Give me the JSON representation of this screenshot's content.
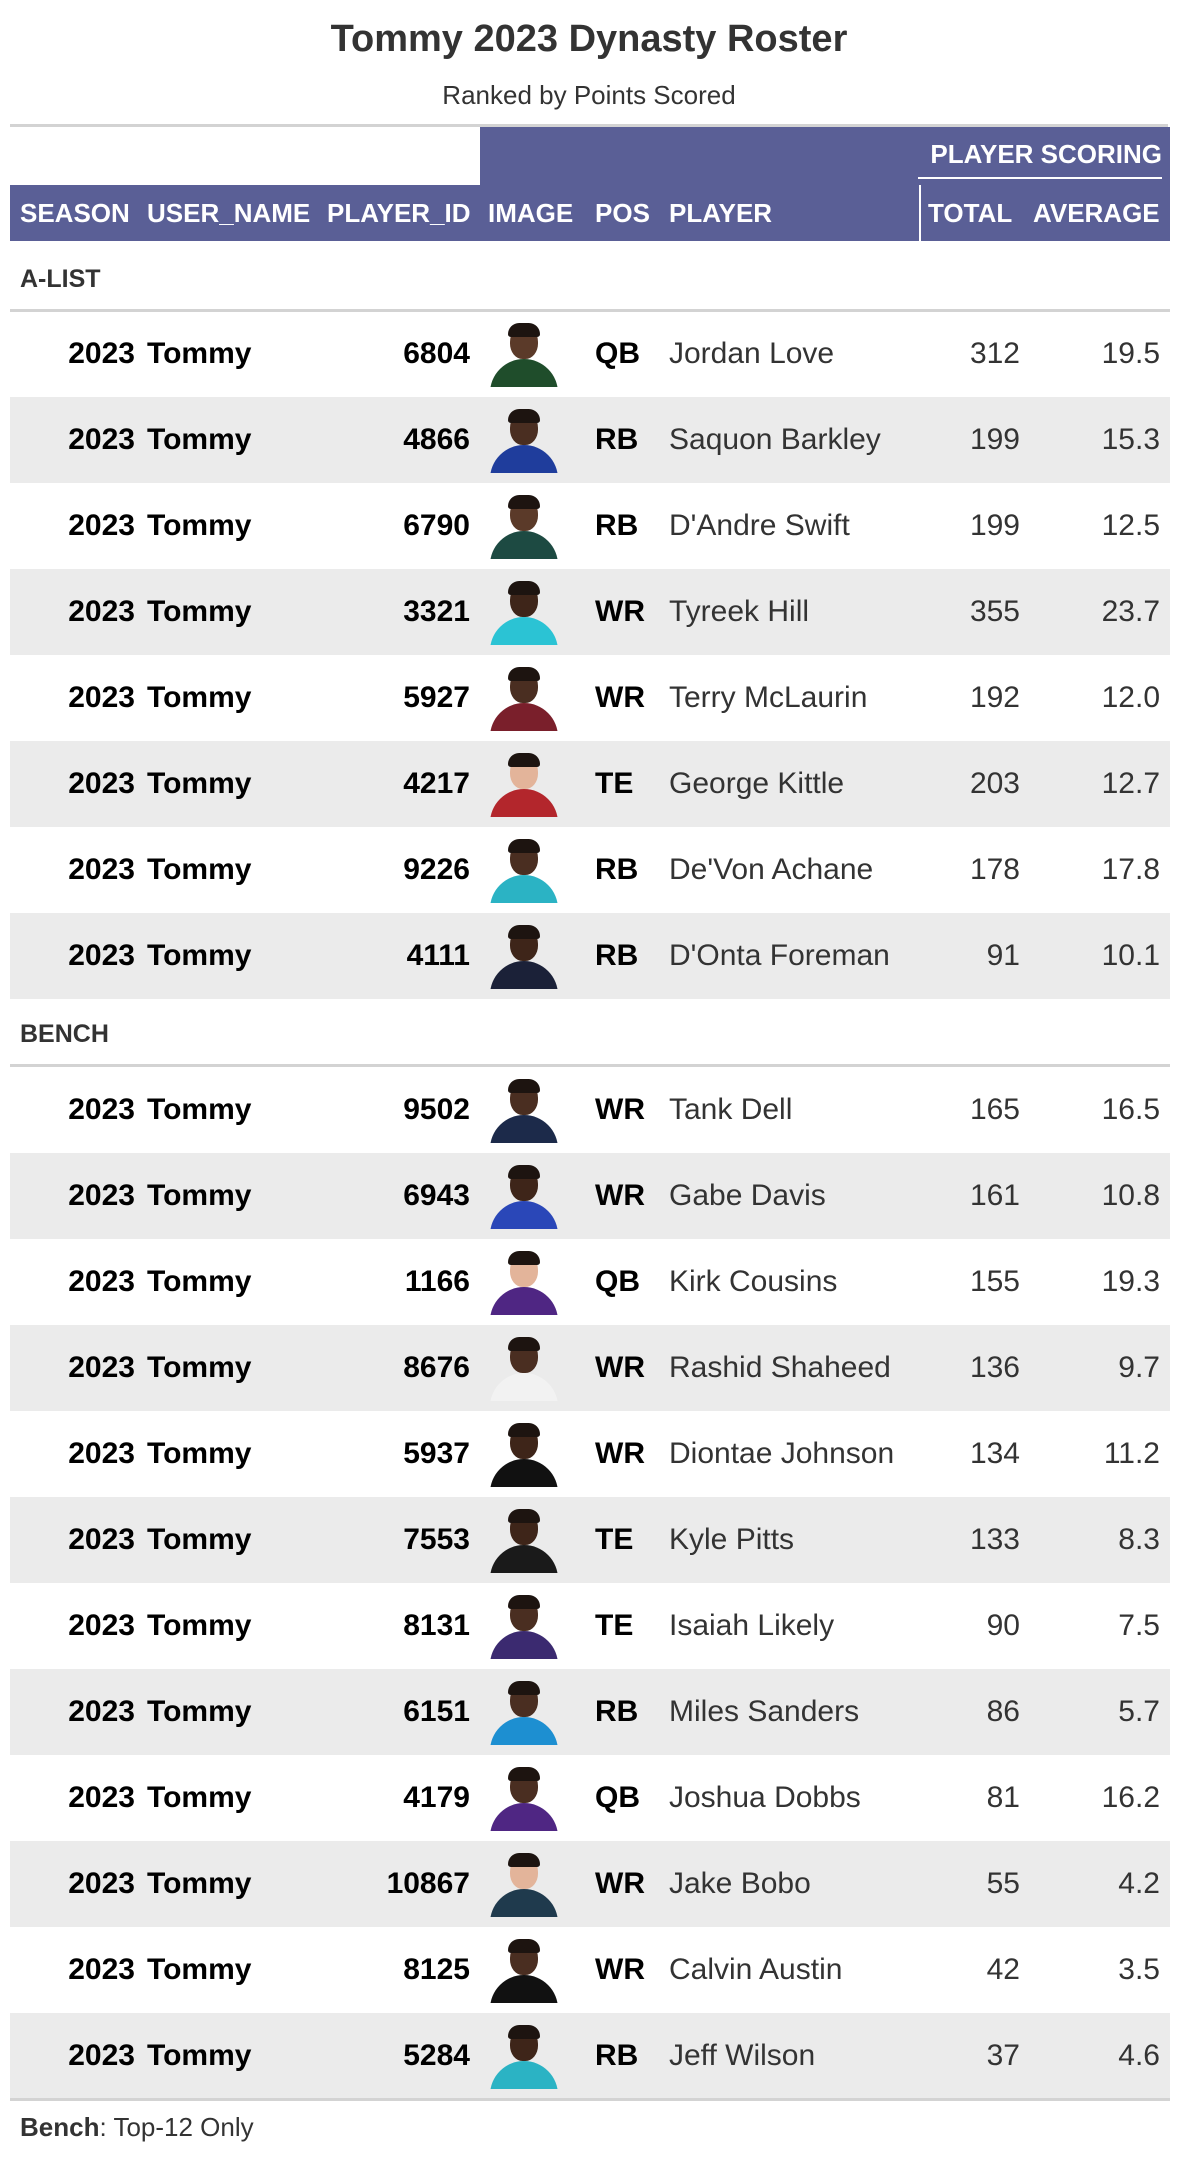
{
  "title": "Tommy 2023 Dynasty Roster",
  "subtitle": "Ranked by Points Scored",
  "spanner": "PLAYER SCORING",
  "columns": {
    "season": "SEASON",
    "user_name": "USER_NAME",
    "player_id": "PLAYER_ID",
    "image": "IMAGE",
    "pos": "POS",
    "player": "PLAYER",
    "total": "TOTAL",
    "average": "AVERAGE"
  },
  "header_color": "#5a5f96",
  "groups": [
    {
      "label": "A-LIST",
      "rows": [
        {
          "season": "2023",
          "user": "Tommy",
          "id": "6804",
          "pos": "QB",
          "player": "Jordan Love",
          "total": "312",
          "avg": "19.5",
          "jersey": "#1f4d2b",
          "skin": "#5b3a29"
        },
        {
          "season": "2023",
          "user": "Tommy",
          "id": "4866",
          "pos": "RB",
          "player": "Saquon Barkley",
          "total": "199",
          "avg": "15.3",
          "jersey": "#1f3d9c",
          "skin": "#4a2e21"
        },
        {
          "season": "2023",
          "user": "Tommy",
          "id": "6790",
          "pos": "RB",
          "player": "D'Andre Swift",
          "total": "199",
          "avg": "12.5",
          "jersey": "#1d4a42",
          "skin": "#5b3a29"
        },
        {
          "season": "2023",
          "user": "Tommy",
          "id": "3321",
          "pos": "WR",
          "player": "Tyreek Hill",
          "total": "355",
          "avg": "23.7",
          "jersey": "#2bc3d4",
          "skin": "#3e2519"
        },
        {
          "season": "2023",
          "user": "Tommy",
          "id": "5927",
          "pos": "WR",
          "player": "Terry McLaurin",
          "total": "192",
          "avg": "12.0",
          "jersey": "#7a1f2b",
          "skin": "#4a2e21"
        },
        {
          "season": "2023",
          "user": "Tommy",
          "id": "4217",
          "pos": "TE",
          "player": "George Kittle",
          "total": "203",
          "avg": "12.7",
          "jersey": "#b3262c",
          "skin": "#e3b49a"
        },
        {
          "season": "2023",
          "user": "Tommy",
          "id": "9226",
          "pos": "RB",
          "player": "De'Von Achane",
          "total": "178",
          "avg": "17.8",
          "jersey": "#2bb3c4",
          "skin": "#4a2e21"
        },
        {
          "season": "2023",
          "user": "Tommy",
          "id": "4111",
          "pos": "RB",
          "player": "D'Onta Foreman",
          "total": "91",
          "avg": "10.1",
          "jersey": "#1b2138",
          "skin": "#3e2519"
        }
      ]
    },
    {
      "label": "BENCH",
      "rows": [
        {
          "season": "2023",
          "user": "Tommy",
          "id": "9502",
          "pos": "WR",
          "player": "Tank Dell",
          "total": "165",
          "avg": "16.5",
          "jersey": "#1c2a4a",
          "skin": "#4a2e21"
        },
        {
          "season": "2023",
          "user": "Tommy",
          "id": "6943",
          "pos": "WR",
          "player": "Gabe Davis",
          "total": "161",
          "avg": "10.8",
          "jersey": "#2a47b8",
          "skin": "#3e2519"
        },
        {
          "season": "2023",
          "user": "Tommy",
          "id": "1166",
          "pos": "QB",
          "player": "Kirk Cousins",
          "total": "155",
          "avg": "19.3",
          "jersey": "#4f2683",
          "skin": "#e3b49a"
        },
        {
          "season": "2023",
          "user": "Tommy",
          "id": "8676",
          "pos": "WR",
          "player": "Rashid Shaheed",
          "total": "136",
          "avg": "9.7",
          "jersey": "#f2f2f2",
          "skin": "#4a2e21"
        },
        {
          "season": "2023",
          "user": "Tommy",
          "id": "5937",
          "pos": "WR",
          "player": "Diontae Johnson",
          "total": "134",
          "avg": "11.2",
          "jersey": "#111111",
          "skin": "#3e2519"
        },
        {
          "season": "2023",
          "user": "Tommy",
          "id": "7553",
          "pos": "TE",
          "player": "Kyle Pitts",
          "total": "133",
          "avg": "8.3",
          "jersey": "#1a1a1a",
          "skin": "#3e2519"
        },
        {
          "season": "2023",
          "user": "Tommy",
          "id": "8131",
          "pos": "TE",
          "player": "Isaiah Likely",
          "total": "90",
          "avg": "7.5",
          "jersey": "#3b2a70",
          "skin": "#4a2e21"
        },
        {
          "season": "2023",
          "user": "Tommy",
          "id": "6151",
          "pos": "RB",
          "player": "Miles Sanders",
          "total": "86",
          "avg": "5.7",
          "jersey": "#1d8fd1",
          "skin": "#4a2e21"
        },
        {
          "season": "2023",
          "user": "Tommy",
          "id": "4179",
          "pos": "QB",
          "player": "Joshua Dobbs",
          "total": "81",
          "avg": "16.2",
          "jersey": "#4f2683",
          "skin": "#4a2e21"
        },
        {
          "season": "2023",
          "user": "Tommy",
          "id": "10867",
          "pos": "WR",
          "player": "Jake Bobo",
          "total": "55",
          "avg": "4.2",
          "jersey": "#1f3a4d",
          "skin": "#e3b49a"
        },
        {
          "season": "2023",
          "user": "Tommy",
          "id": "8125",
          "pos": "WR",
          "player": "Calvin Austin",
          "total": "42",
          "avg": "3.5",
          "jersey": "#111111",
          "skin": "#4a2e21"
        },
        {
          "season": "2023",
          "user": "Tommy",
          "id": "5284",
          "pos": "RB",
          "player": "Jeff Wilson",
          "total": "37",
          "avg": "4.6",
          "jersey": "#2bb3c4",
          "skin": "#3e2519"
        }
      ]
    }
  ],
  "footnote": {
    "label": "Bench",
    "text": ": Top-12 Only"
  }
}
